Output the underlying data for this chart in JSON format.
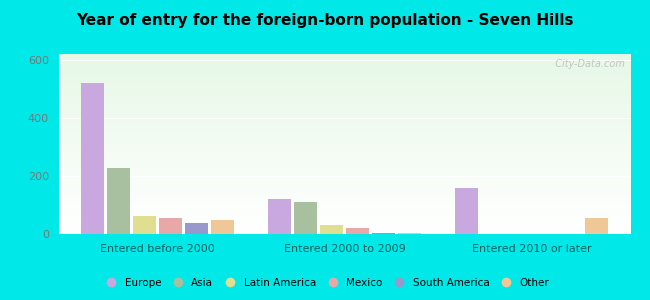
{
  "title": "Year of entry for the foreign-born population - Seven Hills",
  "groups": [
    "Entered before 2000",
    "Entered 2000 to 2009",
    "Entered 2010 or later"
  ],
  "categories": [
    "Europe",
    "Asia",
    "Latin America",
    "Mexico",
    "South America",
    "Other"
  ],
  "colors": [
    "#c8a8df",
    "#a8c0a0",
    "#e0de90",
    "#e8a8a8",
    "#9898cc",
    "#f0c898"
  ],
  "values": {
    "Entered before 2000": [
      520,
      228,
      62,
      55,
      38,
      47
    ],
    "Entered 2000 to 2009": [
      122,
      110,
      30,
      22,
      5,
      5
    ],
    "Entered 2010 or later": [
      160,
      0,
      0,
      0,
      0,
      55
    ]
  },
  "ylim": [
    0,
    620
  ],
  "yticks": [
    0,
    200,
    400,
    600
  ],
  "outer_bg": "#00e8e8",
  "watermark": "  City-Data.com",
  "bar_width": 0.1,
  "group_centers": [
    0.28,
    1.0,
    1.72
  ]
}
